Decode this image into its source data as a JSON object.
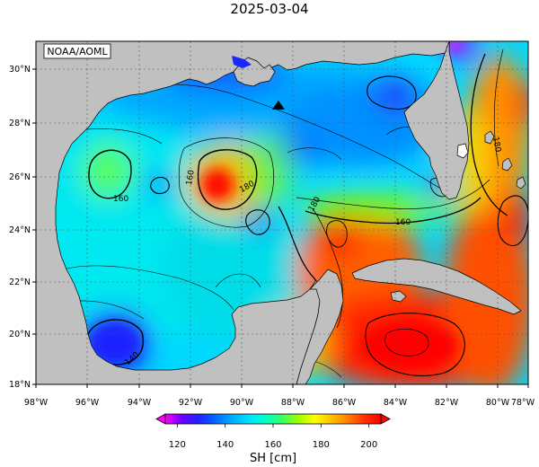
{
  "title": "2025-03-04",
  "source_badge": "NOAA/AOML",
  "colorbar": {
    "unit_label": "SH [cm]",
    "ticks": [
      "120",
      "140",
      "160",
      "180",
      "200"
    ],
    "range": [
      115,
      205
    ],
    "stops": [
      "#ff00ff",
      "#6a00ff",
      "#2222ff",
      "#0066ff",
      "#00aaff",
      "#00e0ff",
      "#00ffcc",
      "#33ff66",
      "#99ff00",
      "#ffff00",
      "#ffc000",
      "#ff7f00",
      "#ff3000",
      "#ff0000"
    ]
  },
  "axes": {
    "lon_ticks": [
      "98°W",
      "96°W",
      "94°W",
      "92°W",
      "90°W",
      "88°W",
      "86°W",
      "84°W",
      "82°W",
      "80°W",
      "78°W"
    ],
    "lat_ticks": [
      "30°N",
      "28°N",
      "26°N",
      "24°N",
      "22°N",
      "20°N",
      "18°N"
    ]
  },
  "contour_labels": [
    "160",
    "160",
    "180",
    "180",
    "160",
    "180",
    "140",
    "160"
  ],
  "marker": {
    "name": "triangle"
  },
  "colors": {
    "land": "#c0c0c0",
    "grid": "#555555",
    "contour": "#000000"
  }
}
